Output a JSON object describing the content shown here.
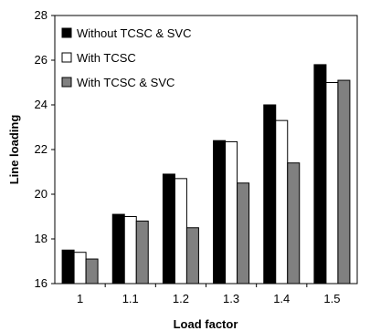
{
  "chart_data": {
    "type": "bar",
    "title": "",
    "xlabel": "Load factor",
    "ylabel": "Line loading",
    "categories": [
      "1",
      "1.1",
      "1.2",
      "1.3",
      "1.4",
      "1.5"
    ],
    "ylim": [
      16,
      28
    ],
    "yticks": [
      "16",
      "18",
      "20",
      "22",
      "24",
      "26",
      "28"
    ],
    "grid": false,
    "legend_position": "top-left",
    "series": [
      {
        "name": "Without TCSC & SVC",
        "color": "#000000",
        "values": [
          17.5,
          19.1,
          20.9,
          22.4,
          24.0,
          25.8
        ]
      },
      {
        "name": "With TCSC",
        "color": "#ffffff",
        "values": [
          17.4,
          19.0,
          20.7,
          22.35,
          23.3,
          25.0
        ]
      },
      {
        "name": "With TCSC & SVC",
        "color": "#808080",
        "values": [
          17.1,
          18.8,
          18.5,
          20.5,
          21.4,
          25.1
        ]
      }
    ]
  }
}
